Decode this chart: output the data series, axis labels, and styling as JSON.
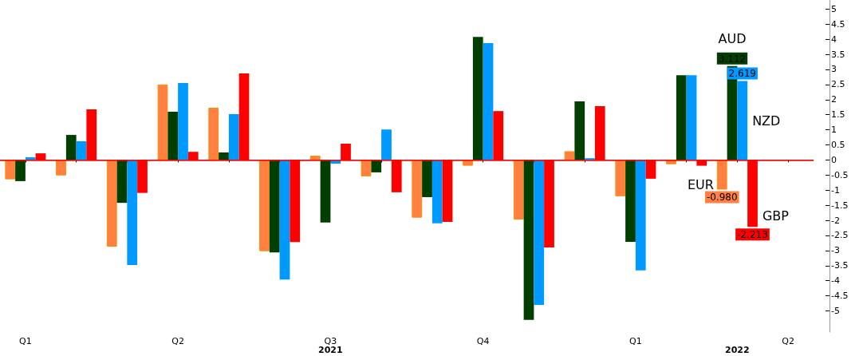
{
  "chart_data": {
    "type": "bar",
    "categories": [
      "Q1",
      null,
      null,
      "Q2",
      null,
      null,
      "Q3",
      null,
      null,
      "Q4",
      null,
      null,
      "Q1",
      null,
      null,
      "Q2"
    ],
    "series": [
      {
        "name": "EUR",
        "color": "#ff8040",
        "values": [
          -0.64,
          -0.51,
          -2.87,
          2.5,
          1.73,
          -3.02,
          0.14,
          -0.54,
          -1.91,
          -0.19,
          -1.97,
          0.29,
          -1.2,
          -0.14,
          -0.98,
          null
        ],
        "value_labels": [
          null,
          null,
          null,
          null,
          null,
          null,
          null,
          null,
          null,
          null,
          null,
          null,
          null,
          null,
          "-0.980",
          null
        ]
      },
      {
        "name": "AUD",
        "color": "#003f00",
        "values": [
          -0.7,
          0.83,
          -1.42,
          1.6,
          0.25,
          -3.06,
          -2.07,
          -0.41,
          -1.23,
          4.08,
          -5.3,
          1.94,
          -2.71,
          2.81,
          3.112,
          null
        ],
        "value_labels": [
          null,
          null,
          null,
          null,
          null,
          null,
          null,
          null,
          null,
          null,
          null,
          null,
          null,
          null,
          "3.112",
          null
        ]
      },
      {
        "name": "NZD",
        "color": "#0099ff",
        "values": [
          0.09,
          0.62,
          -3.48,
          2.55,
          1.52,
          -3.96,
          -0.12,
          1.01,
          -2.1,
          3.87,
          -4.8,
          0.06,
          -3.66,
          2.81,
          2.619,
          null
        ],
        "value_labels": [
          null,
          null,
          null,
          null,
          null,
          null,
          null,
          null,
          null,
          null,
          null,
          null,
          null,
          null,
          "2.619",
          null
        ]
      },
      {
        "name": "GBP",
        "color": "#ff0000",
        "values": [
          0.22,
          1.68,
          -1.09,
          0.27,
          2.87,
          -2.72,
          0.54,
          -1.07,
          -2.05,
          1.62,
          -2.9,
          1.78,
          -0.62,
          -0.19,
          -2.213,
          null
        ],
        "value_labels": [
          null,
          null,
          null,
          null,
          null,
          null,
          null,
          null,
          null,
          null,
          null,
          null,
          null,
          null,
          "-2.213",
          null
        ]
      }
    ],
    "ylim": [
      -5.7,
      5.3
    ],
    "yticks": [
      -5,
      -4.5,
      -4,
      -3.5,
      -3,
      -2.5,
      -2,
      -1.5,
      -1,
      -0.5,
      0,
      0.5,
      1,
      1.5,
      2,
      2.5,
      3,
      3.5,
      4,
      4.5,
      5
    ],
    "ref_lines": [
      {
        "axis": "y",
        "value": 0,
        "color": "#ff0000"
      }
    ],
    "annotations": [
      "2021",
      "2022"
    ],
    "grid": false,
    "legend": false
  }
}
